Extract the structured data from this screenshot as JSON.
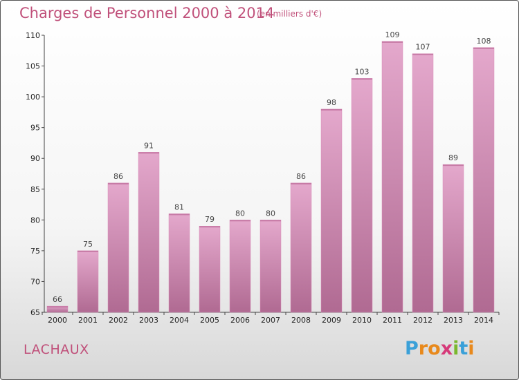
{
  "header": {
    "title": "Charges de Personnel 2000 à 2014",
    "subtitle": "(en milliers d'€)"
  },
  "footer": {
    "commune": "LACHAUX",
    "logo_text": "Proxiti"
  },
  "colors": {
    "bar_top": "#e4a8cc",
    "bar_bottom": "#b06a92",
    "accent": "#c0507a"
  },
  "chart_data": {
    "type": "bar",
    "title": "Charges de Personnel 2000 à 2014",
    "subtitle": "(en milliers d'€)",
    "xlabel": "",
    "ylabel": "",
    "categories": [
      "2000",
      "2001",
      "2002",
      "2003",
      "2004",
      "2005",
      "2006",
      "2007",
      "2008",
      "2009",
      "2010",
      "2011",
      "2012",
      "2013",
      "2014"
    ],
    "values": [
      66,
      75,
      86,
      91,
      81,
      79,
      80,
      80,
      86,
      98,
      103,
      109,
      107,
      89,
      108
    ],
    "ylim": [
      65,
      110
    ],
    "yticks": [
      65,
      70,
      75,
      80,
      85,
      90,
      95,
      100,
      105,
      110
    ],
    "grid": false,
    "legend": "none"
  }
}
